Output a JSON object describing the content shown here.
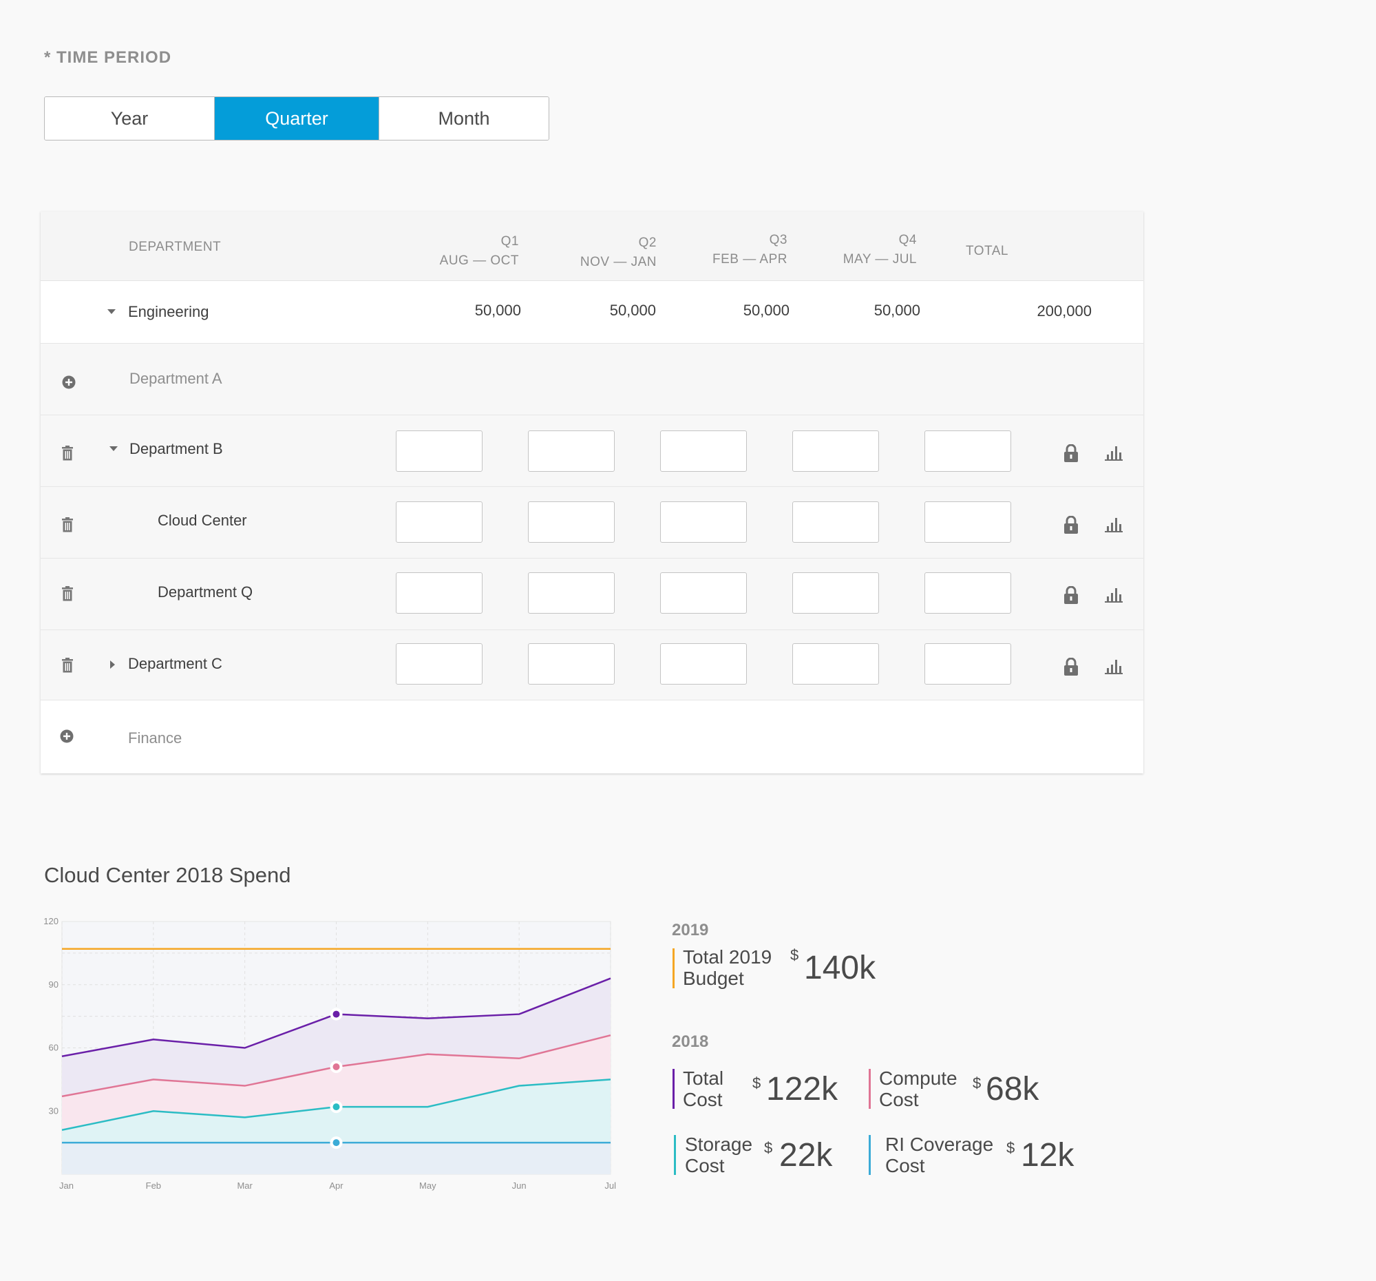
{
  "time_period": {
    "label": "* TIME PERIOD",
    "options": [
      "Year",
      "Quarter",
      "Month"
    ],
    "selected": "Quarter"
  },
  "table": {
    "headers": {
      "department": "DEPARTMENT",
      "q1": "Q1",
      "q1_range": "AUG — OCT",
      "q2": "Q2",
      "q2_range": "NOV — JAN",
      "q3": "Q3",
      "q3_range": "FEB — APR",
      "q4": "Q4",
      "q4_range": "MAY — JUL",
      "total": "TOTAL"
    },
    "engineering": {
      "name": "Engineering",
      "q1": "50,000",
      "q2": "50,000",
      "q3": "50,000",
      "q4": "50,000",
      "total": "200,000"
    },
    "rows": {
      "department_a": "Department A",
      "department_b": "Department B",
      "cloud_center": "Cloud Center",
      "department_q": "Department Q",
      "department_c": "Department C",
      "finance": "Finance"
    }
  },
  "chart": {
    "title": "Cloud Center 2018 Spend"
  },
  "chart_data": {
    "type": "area",
    "x": [
      "Jan",
      "Feb",
      "Mar",
      "Apr",
      "May",
      "Jun",
      "Jul"
    ],
    "ylim": [
      0,
      120
    ],
    "yticks": [
      30,
      60,
      90,
      120
    ],
    "grid": true,
    "series": [
      {
        "values": [
          107,
          107,
          107,
          107,
          107,
          107,
          107
        ],
        "color": "#f5a623"
      },
      {
        "values": [
          56,
          64,
          60,
          76,
          74,
          76,
          93
        ],
        "color": "#6a1fa8"
      },
      {
        "values": [
          37,
          45,
          42,
          51,
          57,
          55,
          66
        ],
        "color": "#e07595"
      },
      {
        "values": [
          21,
          30,
          27,
          32,
          32,
          42,
          45
        ],
        "color": "#2bbcc4"
      },
      {
        "values": [
          15,
          15,
          15,
          15,
          15,
          15,
          15
        ],
        "color": "#3cabd7"
      }
    ],
    "highlight_index": 3
  },
  "stats": {
    "y2019": "2019",
    "y2018": "2018",
    "currency": "$",
    "budget": {
      "label_line1": "Total 2019",
      "label_line2": "Budget",
      "value": "140k",
      "color": "#f5a623"
    },
    "total_cost": {
      "label_line1": "Total",
      "label_line2": "Cost",
      "value": "122k",
      "color": "#6a1fa8"
    },
    "compute_cost": {
      "label_line1": "Compute",
      "label_line2": "Cost",
      "value": "68k",
      "color": "#e07595"
    },
    "storage_cost": {
      "label_line1": "Storage",
      "label_line2": "Cost",
      "value": "22k",
      "color": "#2bbcc4"
    },
    "ri_cost": {
      "label_line1": "RI Coverage",
      "label_line2": "Cost",
      "value": "12k",
      "color": "#3cabd7"
    }
  }
}
